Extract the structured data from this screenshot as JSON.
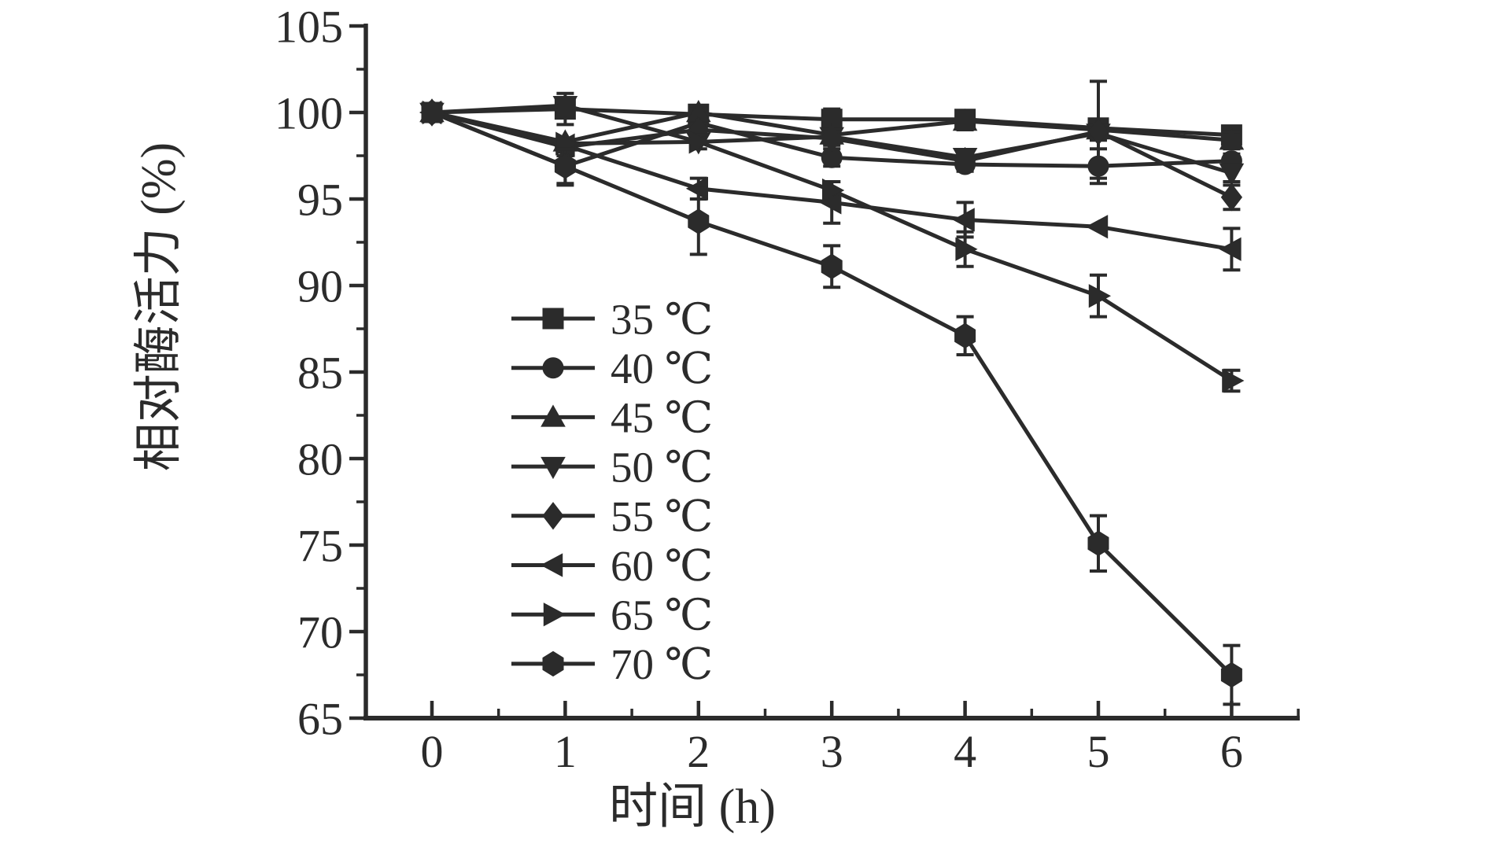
{
  "figure": {
    "background": "#ffffff",
    "foreground": "#2b2b2b"
  },
  "axes": {
    "x": {
      "label": "时间 (h)",
      "tick_labels": [
        "0",
        "1",
        "2",
        "3",
        "4",
        "5",
        "6"
      ],
      "tick_values": [
        0,
        1,
        2,
        3,
        4,
        5,
        6
      ],
      "minor_tick_values": [
        0.5,
        1.5,
        2.5,
        3.5,
        4.5,
        5.5,
        6.5
      ],
      "range": [
        -0.5,
        6.6
      ]
    },
    "y": {
      "label": "相对酶活力 (%)",
      "tick_labels": [
        "65",
        "70",
        "75",
        "80",
        "85",
        "90",
        "95",
        "100",
        "105"
      ],
      "tick_values": [
        65,
        70,
        75,
        80,
        85,
        90,
        95,
        100,
        105
      ],
      "minor_tick_values": [
        67.5,
        72.5,
        77.5,
        82.5,
        87.5,
        92.5,
        97.5,
        102.5
      ],
      "range": [
        65,
        105
      ]
    }
  },
  "chart_data": {
    "type": "line",
    "title": "",
    "xlabel": "时间 (h)",
    "ylabel": "相对酶活力 (%)",
    "xlim": [
      -0.5,
      6.6
    ],
    "ylim": [
      65,
      105
    ],
    "grid": false,
    "legend_position": "inside-center-left",
    "x": [
      0,
      1,
      2,
      3,
      4,
      5,
      6
    ],
    "series": [
      {
        "name": "35 ℃",
        "marker": "square",
        "values": [
          100,
          100.2,
          99.9,
          99.6,
          99.6,
          99.1,
          98.7
        ],
        "errors": [
          0,
          0.9,
          0,
          0.6,
          0,
          0.5,
          0.4
        ]
      },
      {
        "name": "40 ℃",
        "marker": "circle",
        "values": [
          100,
          96.9,
          99.4,
          97.4,
          97.0,
          96.9,
          97.2
        ],
        "errors": [
          0,
          1.1,
          0,
          0.5,
          0.4,
          1.0,
          0.4
        ]
      },
      {
        "name": "45 ℃",
        "marker": "triangle-up",
        "values": [
          100,
          98.3,
          100.0,
          98.7,
          99.5,
          99.0,
          98.4
        ],
        "errors": [
          0,
          0,
          0.4,
          0,
          0.5,
          2.8,
          0.5
        ]
      },
      {
        "name": "50 ℃",
        "marker": "triangle-down",
        "values": [
          100,
          100.4,
          98.3,
          98.6,
          97.4,
          98.8,
          96.5
        ],
        "errors": [
          0,
          0.4,
          0,
          0.4,
          0,
          0.4,
          0.5
        ]
      },
      {
        "name": "55 ℃",
        "marker": "diamond",
        "values": [
          100,
          98.0,
          99.0,
          98.5,
          97.2,
          98.9,
          95.1
        ],
        "errors": [
          0,
          0.5,
          0,
          0.4,
          0,
          0.4,
          0.7
        ]
      },
      {
        "name": "60 ℃",
        "marker": "triangle-left",
        "values": [
          100,
          98.1,
          95.6,
          94.8,
          93.8,
          93.4,
          92.1
        ],
        "errors": [
          0,
          0,
          0.6,
          1.2,
          1.0,
          0,
          1.2
        ]
      },
      {
        "name": "65 ℃",
        "marker": "triangle-right",
        "values": [
          100,
          98.2,
          98.3,
          95.5,
          92.1,
          89.4,
          84.5
        ],
        "errors": [
          0,
          0,
          0.4,
          0.5,
          1.0,
          1.2,
          0.6
        ]
      },
      {
        "name": "70 ℃",
        "marker": "hexagon",
        "values": [
          100,
          96.9,
          93.7,
          91.1,
          87.1,
          75.1,
          67.5
        ],
        "errors": [
          0,
          1.0,
          1.9,
          1.2,
          1.1,
          1.6,
          1.7
        ]
      }
    ]
  }
}
